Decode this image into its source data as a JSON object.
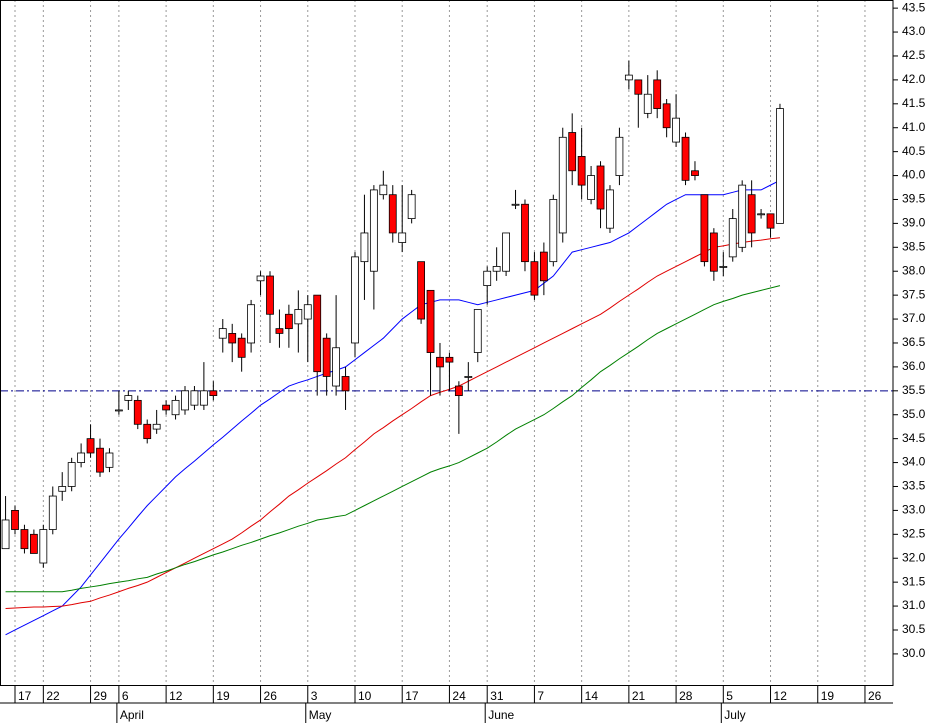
{
  "chart_data": {
    "type": "candlestick",
    "categories": [
      null,
      "17",
      null,
      null,
      "22",
      null,
      null,
      null,
      null,
      "29",
      null,
      null,
      "6",
      null,
      null,
      null,
      null,
      "12",
      null,
      null,
      null,
      null,
      "19",
      null,
      null,
      null,
      null,
      "26",
      null,
      null,
      null,
      null,
      "3",
      null,
      null,
      null,
      null,
      "10",
      null,
      null,
      null,
      null,
      "17",
      null,
      null,
      null,
      null,
      "24",
      null,
      null,
      null,
      "31",
      null,
      null,
      null,
      null,
      "7",
      null,
      null,
      null,
      null,
      "14",
      null,
      null,
      null,
      null,
      "21",
      null,
      null,
      null,
      null,
      "28",
      null,
      null,
      null,
      null,
      "5",
      null,
      null,
      null,
      null,
      "12",
      null,
      null,
      null,
      null,
      "19",
      null,
      null,
      null,
      null,
      "26",
      null,
      null,
      null
    ],
    "month_labels": [
      null,
      null,
      null,
      null,
      null,
      null,
      null,
      null,
      null,
      null,
      null,
      null,
      "April",
      null,
      null,
      null,
      null,
      null,
      null,
      null,
      null,
      null,
      null,
      null,
      null,
      null,
      null,
      null,
      null,
      null,
      null,
      null,
      "May",
      null,
      null,
      null,
      null,
      null,
      null,
      null,
      null,
      null,
      null,
      null,
      null,
      null,
      null,
      null,
      null,
      null,
      null,
      "June",
      null,
      null,
      null,
      null,
      null,
      null,
      null,
      null,
      null,
      null,
      null,
      null,
      null,
      null,
      null,
      null,
      null,
      null,
      null,
      null,
      null,
      null,
      null,
      null,
      "July",
      null,
      null,
      null,
      null,
      null,
      null,
      null,
      null,
      null,
      null,
      null,
      null,
      null,
      null,
      null,
      null,
      null,
      null
    ],
    "open": [
      32.2,
      33.0,
      32.6,
      32.5,
      31.9,
      32.6,
      33.4,
      33.5,
      34.0,
      34.5,
      34.3,
      33.9,
      35.1,
      35.3,
      35.3,
      34.8,
      34.7,
      35.2,
      35.0,
      35.1,
      35.2,
      35.2,
      35.5,
      36.6,
      36.7,
      36.6,
      36.5,
      37.8,
      37.9,
      36.8,
      37.1,
      36.9,
      37.0,
      37.5,
      36.6,
      35.6,
      35.8,
      36.5,
      38.2,
      38.0,
      39.6,
      39.6,
      38.6,
      39.1,
      38.2,
      37.6,
      36.2,
      36.2,
      35.6,
      35.8,
      36.3,
      37.7,
      38.0,
      38.0,
      39.4,
      39.4,
      38.2,
      38.4,
      38.2,
      38.8,
      40.9,
      40.4,
      39.5,
      40.2,
      38.9,
      40.0,
      42.0,
      42.0,
      41.3,
      42.0,
      41.5,
      40.7,
      40.8,
      40.1,
      39.6,
      38.8,
      38.1,
      38.3,
      38.5,
      39.6,
      39.2,
      39.2,
      39.0,
      null,
      null,
      null,
      null,
      null,
      null,
      null,
      null,
      null,
      null,
      null,
      null
    ],
    "high": [
      33.3,
      33.1,
      32.7,
      32.6,
      32.7,
      33.5,
      33.8,
      34.1,
      34.4,
      34.8,
      34.5,
      34.3,
      35.5,
      35.5,
      35.4,
      34.9,
      35.1,
      35.3,
      35.4,
      35.6,
      35.6,
      36.1,
      35.7,
      37.0,
      36.9,
      36.7,
      37.4,
      38.0,
      38.0,
      37.2,
      37.3,
      37.6,
      37.5,
      37.5,
      36.7,
      37.5,
      36.0,
      38.4,
      39.6,
      39.8,
      40.1,
      39.8,
      39.8,
      39.7,
      38.2,
      37.6,
      36.5,
      36.3,
      35.7,
      36.1,
      37.2,
      38.1,
      38.5,
      38.8,
      39.7,
      39.5,
      38.4,
      38.6,
      39.6,
      41.0,
      41.3,
      41.0,
      40.2,
      40.3,
      39.8,
      41.0,
      42.4,
      42.0,
      42.1,
      42.2,
      41.6,
      41.7,
      40.9,
      40.3,
      39.6,
      38.9,
      38.4,
      39.3,
      39.9,
      39.9,
      39.3,
      39.2,
      41.5,
      null,
      null,
      null,
      null,
      null,
      null,
      null,
      null,
      null,
      null,
      null,
      null
    ],
    "low": [
      32.2,
      32.5,
      32.1,
      32.1,
      31.8,
      32.5,
      33.2,
      33.4,
      33.9,
      34.1,
      33.7,
      33.8,
      35.0,
      35.1,
      34.7,
      34.4,
      34.6,
      35.0,
      34.9,
      35.0,
      35.1,
      35.1,
      35.3,
      36.3,
      36.1,
      35.9,
      36.3,
      37.5,
      36.5,
      36.4,
      36.4,
      36.3,
      36.1,
      35.4,
      35.4,
      35.4,
      35.1,
      36.2,
      37.4,
      37.2,
      39.5,
      38.6,
      38.4,
      39.0,
      36.9,
      35.4,
      35.4,
      35.5,
      34.6,
      35.5,
      36.1,
      37.3,
      37.8,
      37.9,
      39.3,
      38.0,
      37.4,
      37.5,
      38.1,
      38.6,
      39.8,
      39.5,
      39.4,
      38.9,
      38.8,
      39.8,
      41.8,
      41.0,
      41.2,
      41.2,
      40.8,
      40.6,
      39.8,
      39.9,
      38.1,
      37.8,
      37.9,
      38.2,
      38.4,
      38.5,
      39.1,
      38.7,
      39.0,
      null,
      null,
      null,
      null,
      null,
      null,
      null,
      null,
      null,
      null,
      null,
      null
    ],
    "close": [
      32.8,
      32.6,
      32.2,
      32.1,
      32.6,
      33.3,
      33.5,
      34.0,
      34.2,
      34.2,
      33.8,
      34.2,
      35.1,
      35.4,
      34.8,
      34.5,
      34.8,
      35.1,
      35.3,
      35.5,
      35.5,
      35.5,
      35.4,
      36.8,
      36.5,
      36.2,
      37.3,
      37.9,
      37.1,
      36.7,
      36.8,
      37.2,
      37.3,
      35.9,
      35.8,
      36.4,
      35.5,
      38.3,
      38.8,
      39.7,
      39.8,
      38.8,
      38.8,
      39.6,
      37.0,
      36.3,
      36.0,
      36.1,
      35.4,
      35.8,
      37.2,
      38.0,
      38.1,
      38.8,
      39.4,
      38.2,
      37.5,
      37.8,
      39.5,
      40.8,
      40.1,
      39.8,
      40.0,
      39.3,
      39.7,
      40.8,
      42.1,
      41.7,
      41.7,
      41.4,
      41.0,
      41.2,
      39.9,
      40.0,
      38.2,
      38.0,
      38.1,
      39.1,
      39.8,
      38.8,
      39.2,
      38.9,
      41.4,
      null,
      null,
      null,
      null,
      null,
      null,
      null,
      null,
      null,
      null,
      null,
      null
    ],
    "up_color": "#ffffff",
    "down_color": "#ff0000",
    "series": [
      {
        "color": "#0000ff",
        "values": [
          30.4,
          30.5,
          30.6,
          30.7,
          30.8,
          30.9,
          31.0,
          31.2,
          31.4,
          31.65,
          31.9,
          32.15,
          32.4,
          32.63,
          32.87,
          33.1,
          33.3,
          33.5,
          33.7,
          33.87,
          34.03,
          34.2,
          34.37,
          34.53,
          34.7,
          34.87,
          35.03,
          35.2,
          35.33,
          35.47,
          35.6,
          35.67,
          35.73,
          35.8,
          35.87,
          35.93,
          36.0,
          36.15,
          36.3,
          36.45,
          36.6,
          36.8,
          37.0,
          37.15,
          37.3,
          37.35,
          37.4,
          37.4,
          37.4,
          37.35,
          37.3,
          37.35,
          37.4,
          37.45,
          37.5,
          37.55,
          37.6,
          37.75,
          37.9,
          38.15,
          38.4,
          38.45,
          38.5,
          38.55,
          38.6,
          38.7,
          38.8,
          38.95,
          39.1,
          39.25,
          39.4,
          39.5,
          39.6,
          39.6,
          39.6,
          39.6,
          39.6,
          39.65,
          39.7,
          39.7,
          39.7,
          39.8,
          39.9,
          null,
          null,
          null,
          null,
          null,
          null,
          null,
          null,
          null,
          null,
          null,
          null
        ]
      },
      {
        "color": "#e00000",
        "values": [
          30.95,
          30.96,
          30.97,
          30.98,
          30.98,
          30.99,
          31.0,
          31.03,
          31.07,
          31.1,
          31.17,
          31.23,
          31.3,
          31.37,
          31.43,
          31.5,
          31.6,
          31.7,
          31.8,
          31.9,
          32.0,
          32.1,
          32.2,
          32.3,
          32.4,
          32.53,
          32.67,
          32.8,
          32.97,
          33.13,
          33.3,
          33.43,
          33.57,
          33.7,
          33.83,
          33.97,
          34.1,
          34.27,
          34.43,
          34.6,
          34.73,
          34.87,
          35.0,
          35.13,
          35.27,
          35.4,
          35.47,
          35.53,
          35.6,
          35.7,
          35.8,
          35.9,
          36.0,
          36.1,
          36.2,
          36.3,
          36.4,
          36.5,
          36.6,
          36.7,
          36.8,
          36.9,
          37.0,
          37.1,
          37.23,
          37.37,
          37.5,
          37.63,
          37.77,
          37.9,
          38.0,
          38.1,
          38.2,
          38.3,
          38.4,
          38.5,
          38.53,
          38.57,
          38.6,
          38.63,
          38.65,
          38.68,
          38.7,
          null,
          null,
          null,
          null,
          null,
          null,
          null,
          null,
          null,
          null,
          null,
          null
        ]
      },
      {
        "color": "#008000",
        "values": [
          31.3,
          31.3,
          31.3,
          31.3,
          31.3,
          31.3,
          31.3,
          31.33,
          31.37,
          31.4,
          31.43,
          31.47,
          31.5,
          31.53,
          31.57,
          31.6,
          31.67,
          31.73,
          31.8,
          31.87,
          31.93,
          32.0,
          32.07,
          32.13,
          32.2,
          32.27,
          32.33,
          32.4,
          32.47,
          32.53,
          32.6,
          32.67,
          32.73,
          32.8,
          32.83,
          32.87,
          32.9,
          33.0,
          33.1,
          33.2,
          33.3,
          33.4,
          33.5,
          33.6,
          33.7,
          33.8,
          33.87,
          33.93,
          34.0,
          34.1,
          34.2,
          34.3,
          34.43,
          34.57,
          34.7,
          34.8,
          34.9,
          35.0,
          35.13,
          35.27,
          35.4,
          35.57,
          35.73,
          35.9,
          36.03,
          36.17,
          36.3,
          36.43,
          36.57,
          36.7,
          36.8,
          36.9,
          37.0,
          37.1,
          37.2,
          37.3,
          37.37,
          37.43,
          37.5,
          37.55,
          37.6,
          37.65,
          37.7,
          null,
          null,
          null,
          null,
          null,
          null,
          null,
          null,
          null,
          null,
          null,
          null
        ]
      }
    ],
    "reference_line": {
      "value": 35.5,
      "color": "#00008b"
    },
    "ylim": [
      29.35,
      43.67
    ],
    "yticks": [
      {
        "value": 30,
        "label": "30.0"
      },
      30.5,
      {
        "value": 31,
        "label": "31.0"
      },
      31.5,
      {
        "value": 32,
        "label": "32.0"
      },
      32.5,
      {
        "value": 33,
        "label": "33.0"
      },
      33.5,
      {
        "value": 34,
        "label": "34.0"
      },
      34.5,
      {
        "value": 35,
        "label": "35.0"
      },
      35.5,
      {
        "value": 36,
        "label": "36.0"
      },
      36.5,
      {
        "value": 37,
        "label": "37.0"
      },
      37.5,
      {
        "value": 38,
        "label": "38.0"
      },
      38.5,
      {
        "value": 39,
        "label": "39.0"
      },
      39.5,
      {
        "value": 40,
        "label": "40.0"
      },
      40.5,
      {
        "value": 41,
        "label": "41.0"
      },
      41.5,
      {
        "value": 42,
        "label": "42.0"
      },
      42.5,
      {
        "value": 43,
        "label": "43.0"
      },
      43.5
    ],
    "grid": true
  }
}
